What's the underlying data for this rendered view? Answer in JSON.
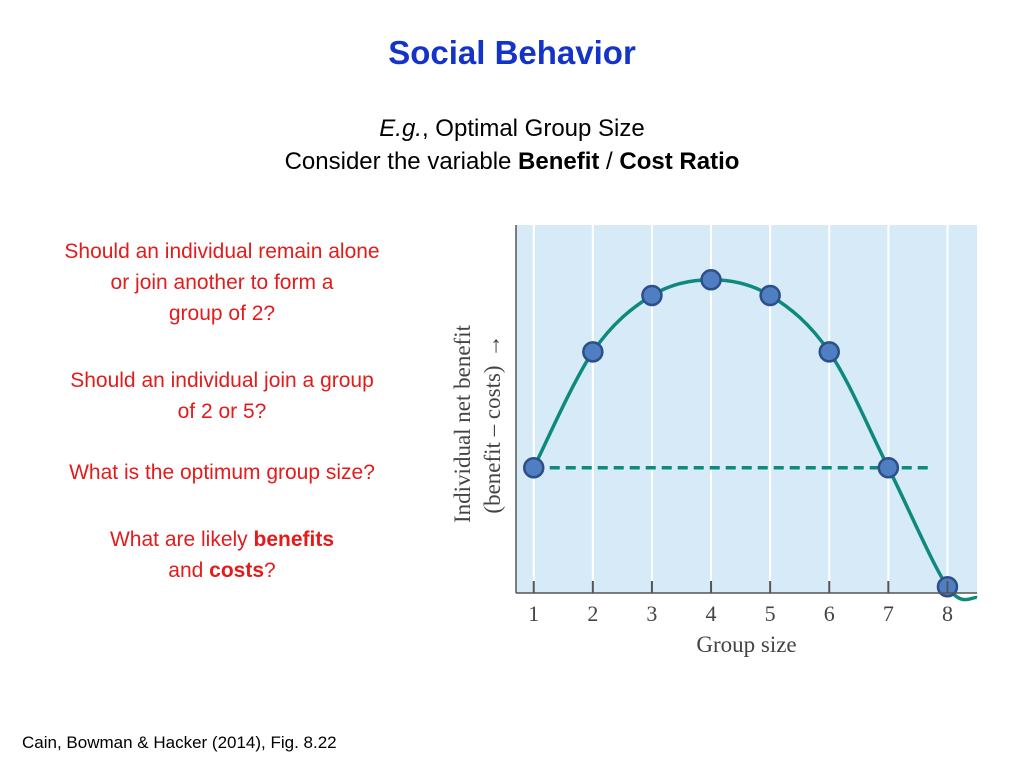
{
  "slide": {
    "title": "Social Behavior",
    "subtitle_eg": "E.g.",
    "subtitle_rest": ", Optimal Group Size",
    "subtitle_line2_prefix": "Consider the variable ",
    "subtitle_benefit": "Benefit",
    "subtitle_slash": " / ",
    "subtitle_cost_ratio": "Cost Ratio",
    "q1_line1": "Should an individual remain alone",
    "q1_line2": "or join another to form a",
    "q1_line3": "group of 2?",
    "q2_line1": "Should an individual join a group",
    "q2_line2": "of 2 or 5?",
    "q3": "What is the optimum group size?",
    "q4_prefix": "What are likely ",
    "q4_benefits": "benefits",
    "q4_and": "and ",
    "q4_costs": "costs",
    "q4_suffix": "?",
    "citation": "Cain, Bowman & Hacker (2014), Fig. 8.22",
    "colors": {
      "title": "#1433c8",
      "question_text": "#e31b1b",
      "plot_background": "#d6eaf8",
      "curve": "#0e8a7c",
      "marker_fill": "#4f7fc2",
      "marker_stroke": "#2d4f88"
    }
  },
  "chart_data": {
    "type": "line",
    "xlabel": "Group size",
    "ylabel_line1": "Individual net benefit",
    "ylabel_line2": "(benefit – costs)",
    "ylabel_arrow": "→",
    "x": [
      1,
      2,
      3,
      4,
      5,
      6,
      7,
      8
    ],
    "xtick_labels": [
      "1",
      "2",
      "3",
      "4",
      "5",
      "6",
      "7",
      "8"
    ],
    "xlim": [
      0.7,
      8.5
    ],
    "ylim": [
      -0.8,
      1.55
    ],
    "series": [
      {
        "values": [
          0,
          0.74,
          1.1,
          1.2,
          1.1,
          0.74,
          0,
          -0.76
        ]
      }
    ],
    "reference_line": {
      "y": 0,
      "from_x": 1,
      "to_x": 7.7,
      "style": "dashed"
    },
    "curve_end_x": 8.5,
    "curve_end_y": -0.83,
    "grid": {
      "vertical": true,
      "horizontal": false
    },
    "y_ticks_shown": false
  }
}
